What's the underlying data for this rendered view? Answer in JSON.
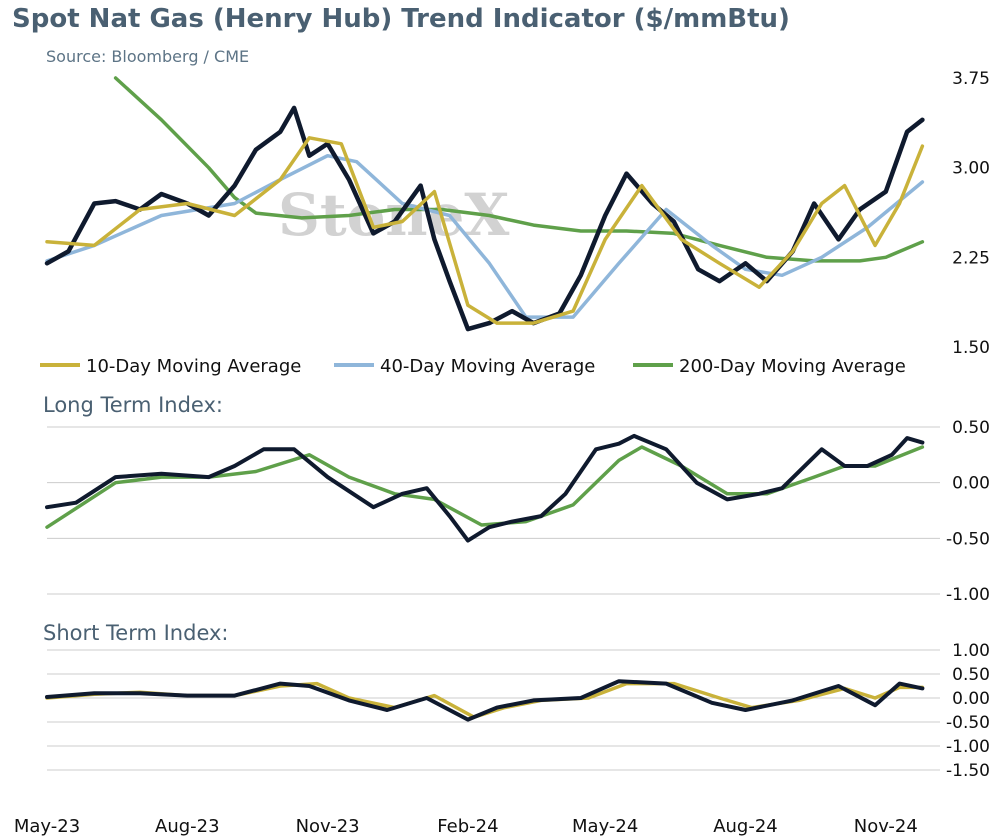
{
  "header": {
    "title": "Spot Nat Gas (Henry Hub) Trend Indicator ($/mmBtu)",
    "source": "Source: Bloomberg / CME"
  },
  "watermark": "StoneX",
  "panels": {
    "long_title": "Long Term Index:",
    "short_title": "Short Term Index:"
  },
  "colors": {
    "spot": "#0f1a2e",
    "ma10": "#c9b23a",
    "ma40": "#8fb6da",
    "ma200": "#5fa04a",
    "long_secondary": "#5fa04a",
    "short_secondary": "#c9b23a",
    "grid": "#cccccc"
  },
  "chart_data": [
    {
      "type": "line",
      "x_range": [
        "2023-05-01",
        "2024-11-30"
      ],
      "xticks": [
        "May-23",
        "Aug-23",
        "Nov-23",
        "Feb-24",
        "May-24",
        "Aug-24",
        "Nov-24"
      ],
      "ylim": [
        1.5,
        3.75
      ],
      "yticks": [
        "3.75",
        "3.00",
        "2.25",
        "1.50"
      ],
      "legend": "bottom",
      "series": [
        {
          "name": "",
          "key": "spot",
          "x": [
            "2023-05-01",
            "2023-05-15",
            "2023-06-01",
            "2023-06-15",
            "2023-07-01",
            "2023-07-15",
            "2023-08-01",
            "2023-08-15",
            "2023-09-01",
            "2023-09-15",
            "2023-10-01",
            "2023-10-10",
            "2023-10-20",
            "2023-11-01",
            "2023-11-15",
            "2023-12-01",
            "2023-12-15",
            "2024-01-01",
            "2024-01-10",
            "2024-01-20",
            "2024-02-01",
            "2024-02-15",
            "2024-03-01",
            "2024-03-15",
            "2024-04-01",
            "2024-04-15",
            "2024-05-01",
            "2024-05-15",
            "2024-06-01",
            "2024-06-15",
            "2024-07-01",
            "2024-07-15",
            "2024-08-01",
            "2024-08-15",
            "2024-09-01",
            "2024-09-15",
            "2024-10-01",
            "2024-10-15",
            "2024-11-01",
            "2024-11-15",
            "2024-11-25"
          ],
          "values": [
            2.2,
            2.3,
            2.7,
            2.72,
            2.65,
            2.78,
            2.7,
            2.6,
            2.85,
            3.15,
            3.3,
            3.5,
            3.1,
            3.2,
            2.9,
            2.45,
            2.55,
            2.85,
            2.4,
            2.05,
            1.65,
            1.7,
            1.8,
            1.7,
            1.78,
            2.1,
            2.6,
            2.95,
            2.7,
            2.55,
            2.15,
            2.05,
            2.2,
            2.05,
            2.3,
            2.7,
            2.4,
            2.65,
            2.8,
            3.3,
            3.4
          ]
        },
        {
          "name": "10-Day Moving Average",
          "key": "ma10",
          "x": [
            "2023-05-01",
            "2023-06-01",
            "2023-07-01",
            "2023-08-01",
            "2023-09-01",
            "2023-10-01",
            "2023-10-20",
            "2023-11-10",
            "2023-12-01",
            "2023-12-20",
            "2024-01-10",
            "2024-02-01",
            "2024-02-20",
            "2024-03-15",
            "2024-04-10",
            "2024-05-01",
            "2024-05-25",
            "2024-06-20",
            "2024-07-15",
            "2024-08-10",
            "2024-09-01",
            "2024-09-20",
            "2024-10-05",
            "2024-10-25",
            "2024-11-10",
            "2024-11-25"
          ],
          "values": [
            2.38,
            2.35,
            2.65,
            2.7,
            2.6,
            2.9,
            3.25,
            3.2,
            2.5,
            2.55,
            2.8,
            1.85,
            1.7,
            1.7,
            1.8,
            2.4,
            2.85,
            2.4,
            2.2,
            2.0,
            2.3,
            2.7,
            2.85,
            2.35,
            2.7,
            3.18
          ]
        },
        {
          "name": "40-Day Moving Average",
          "key": "ma40",
          "x": [
            "2023-05-01",
            "2023-06-01",
            "2023-07-15",
            "2023-09-01",
            "2023-10-01",
            "2023-11-01",
            "2023-11-20",
            "2023-12-20",
            "2024-01-20",
            "2024-02-15",
            "2024-03-10",
            "2024-04-10",
            "2024-05-10",
            "2024-06-10",
            "2024-07-10",
            "2024-08-01",
            "2024-08-25",
            "2024-09-20",
            "2024-10-20",
            "2024-11-25"
          ],
          "values": [
            2.22,
            2.35,
            2.6,
            2.7,
            2.9,
            3.1,
            3.05,
            2.7,
            2.6,
            2.2,
            1.75,
            1.75,
            2.2,
            2.65,
            2.35,
            2.15,
            2.1,
            2.25,
            2.5,
            2.88
          ]
        },
        {
          "name": "200-Day Moving Average",
          "key": "ma200",
          "x": [
            "2023-06-15",
            "2023-07-15",
            "2023-08-15",
            "2023-09-01",
            "2023-09-15",
            "2023-10-15",
            "2023-11-15",
            "2023-12-15",
            "2024-01-15",
            "2024-02-15",
            "2024-03-15",
            "2024-04-15",
            "2024-05-15",
            "2024-06-15",
            "2024-07-15",
            "2024-08-15",
            "2024-09-15",
            "2024-10-15",
            "2024-11-01",
            "2024-11-25"
          ],
          "values": [
            3.75,
            3.4,
            3.0,
            2.75,
            2.62,
            2.58,
            2.6,
            2.65,
            2.65,
            2.6,
            2.52,
            2.47,
            2.47,
            2.45,
            2.35,
            2.25,
            2.22,
            2.22,
            2.25,
            2.38
          ]
        }
      ]
    },
    {
      "type": "line",
      "title": "Long Term Index:",
      "x_range": [
        "2023-05-01",
        "2024-11-30"
      ],
      "ylim": [
        -1.0,
        0.5
      ],
      "yticks": [
        "0.50",
        "0.00",
        "-0.50",
        "-1.00"
      ],
      "series": [
        {
          "name": "",
          "key": "long_primary",
          "x": [
            "2023-05-01",
            "2023-05-20",
            "2023-06-15",
            "2023-07-15",
            "2023-08-15",
            "2023-09-01",
            "2023-09-20",
            "2023-10-10",
            "2023-11-01",
            "2023-12-01",
            "2023-12-20",
            "2024-01-05",
            "2024-01-20",
            "2024-02-01",
            "2024-02-15",
            "2024-03-01",
            "2024-03-20",
            "2024-04-05",
            "2024-04-25",
            "2024-05-10",
            "2024-05-20",
            "2024-06-10",
            "2024-06-30",
            "2024-07-20",
            "2024-08-10",
            "2024-08-25",
            "2024-09-20",
            "2024-10-05",
            "2024-10-20",
            "2024-11-05",
            "2024-11-15",
            "2024-11-25"
          ],
          "values": [
            -0.22,
            -0.18,
            0.05,
            0.08,
            0.05,
            0.15,
            0.3,
            0.3,
            0.05,
            -0.22,
            -0.1,
            -0.05,
            -0.3,
            -0.52,
            -0.4,
            -0.35,
            -0.3,
            -0.1,
            0.3,
            0.35,
            0.42,
            0.3,
            0.0,
            -0.15,
            -0.1,
            -0.05,
            0.3,
            0.15,
            0.15,
            0.25,
            0.4,
            0.36
          ]
        },
        {
          "name": "",
          "key": "long_secondary",
          "x": [
            "2023-05-01",
            "2023-06-15",
            "2023-07-15",
            "2023-08-15",
            "2023-09-15",
            "2023-10-20",
            "2023-11-15",
            "2023-12-15",
            "2024-01-10",
            "2024-02-10",
            "2024-03-10",
            "2024-04-10",
            "2024-05-10",
            "2024-05-25",
            "2024-06-20",
            "2024-07-20",
            "2024-08-15",
            "2024-09-15",
            "2024-10-05",
            "2024-10-25",
            "2024-11-25"
          ],
          "values": [
            -0.4,
            0.0,
            0.05,
            0.05,
            0.1,
            0.25,
            0.05,
            -0.1,
            -0.15,
            -0.38,
            -0.35,
            -0.2,
            0.2,
            0.32,
            0.15,
            -0.1,
            -0.1,
            0.05,
            0.15,
            0.15,
            0.32
          ]
        }
      ]
    },
    {
      "type": "line",
      "title": "Short Term Index:",
      "x_range": [
        "2023-05-01",
        "2024-11-30"
      ],
      "ylim": [
        -1.5,
        1.0
      ],
      "yticks": [
        "1.00",
        "0.50",
        "0.00",
        "-0.50",
        "-1.00",
        "-1.50"
      ],
      "series": [
        {
          "name": "",
          "key": "short_primary",
          "x": [
            "2023-05-01",
            "2023-06-01",
            "2023-07-01",
            "2023-08-01",
            "2023-09-01",
            "2023-10-01",
            "2023-10-20",
            "2023-11-15",
            "2023-12-10",
            "2024-01-05",
            "2024-02-01",
            "2024-02-20",
            "2024-03-15",
            "2024-04-15",
            "2024-05-10",
            "2024-06-10",
            "2024-07-10",
            "2024-08-01",
            "2024-09-01",
            "2024-10-01",
            "2024-10-25",
            "2024-11-10",
            "2024-11-25"
          ],
          "values": [
            0.02,
            0.1,
            0.1,
            0.05,
            0.05,
            0.3,
            0.25,
            -0.05,
            -0.25,
            0.0,
            -0.45,
            -0.2,
            -0.05,
            0.0,
            0.35,
            0.3,
            -0.1,
            -0.25,
            -0.05,
            0.25,
            -0.15,
            0.3,
            0.2
          ]
        },
        {
          "name": "",
          "key": "short_secondary",
          "x": [
            "2023-05-01",
            "2023-06-01",
            "2023-07-01",
            "2023-08-01",
            "2023-09-01",
            "2023-10-01",
            "2023-10-25",
            "2023-11-15",
            "2023-12-15",
            "2024-01-10",
            "2024-02-05",
            "2024-02-25",
            "2024-03-20",
            "2024-04-20",
            "2024-05-15",
            "2024-06-15",
            "2024-07-15",
            "2024-08-05",
            "2024-09-05",
            "2024-10-05",
            "2024-10-25",
            "2024-11-10",
            "2024-11-25"
          ],
          "values": [
            0.0,
            0.08,
            0.12,
            0.05,
            0.05,
            0.25,
            0.3,
            0.0,
            -0.2,
            0.05,
            -0.4,
            -0.2,
            -0.05,
            0.0,
            0.3,
            0.3,
            0.0,
            -0.2,
            -0.05,
            0.2,
            0.0,
            0.22,
            0.22
          ]
        }
      ]
    }
  ]
}
